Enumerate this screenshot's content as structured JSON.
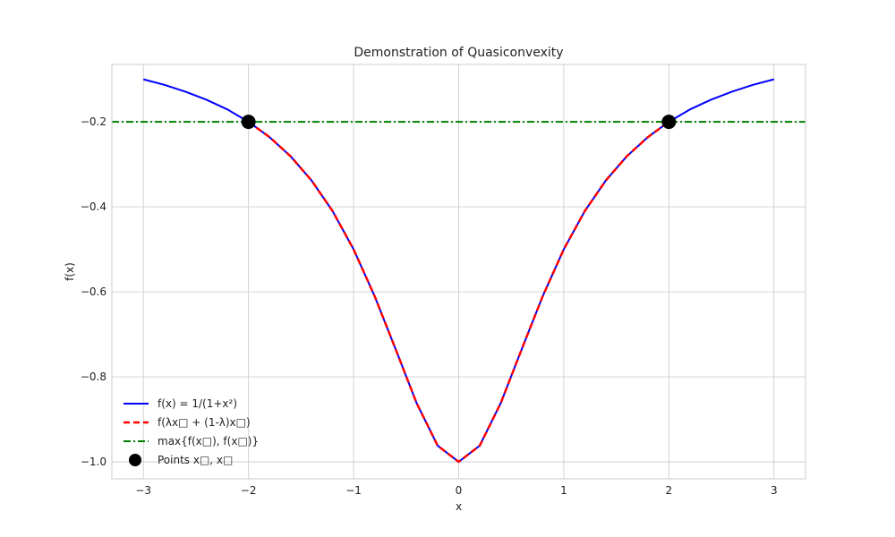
{
  "chart_data": {
    "type": "line",
    "title": "Demonstration of Quasiconvexity",
    "xlabel": "x",
    "ylabel": "f(x)",
    "xlim": [
      -3.3,
      3.3
    ],
    "ylim": [
      -1.04,
      -0.065
    ],
    "x_ticks": [
      -3,
      -2,
      -1,
      0,
      1,
      2,
      3
    ],
    "x_tick_labels": [
      "−3",
      "−2",
      "−1",
      "0",
      "1",
      "2",
      "3"
    ],
    "y_ticks": [
      -0.2,
      -0.4,
      -0.6,
      -0.8,
      -1.0
    ],
    "y_tick_labels": [
      "−0.2",
      "−0.4",
      "−0.6",
      "−0.8",
      "−1.0"
    ],
    "grid": true,
    "legend_position": "lower-left",
    "series": [
      {
        "name": "f(x) = 1/(1+x²)",
        "style": "solid",
        "color": "#0000ff",
        "x": [
          -3.0,
          -2.8,
          -2.6,
          -2.4,
          -2.2,
          -2.0,
          -1.8,
          -1.6,
          -1.4,
          -1.2,
          -1.0,
          -0.8,
          -0.6,
          -0.4,
          -0.2,
          0.0,
          0.2,
          0.4,
          0.6,
          0.8,
          1.0,
          1.2,
          1.4,
          1.6,
          1.8,
          2.0,
          2.2,
          2.4,
          2.6,
          2.8,
          3.0
        ],
        "y": [
          -0.1,
          -0.113,
          -0.129,
          -0.148,
          -0.171,
          -0.2,
          -0.236,
          -0.281,
          -0.338,
          -0.41,
          -0.5,
          -0.61,
          -0.735,
          -0.862,
          -0.962,
          -1.0,
          -0.962,
          -0.862,
          -0.735,
          -0.61,
          -0.5,
          -0.41,
          -0.338,
          -0.281,
          -0.236,
          -0.2,
          -0.171,
          -0.148,
          -0.129,
          -0.113,
          -0.1
        ]
      },
      {
        "name": "f(λx□ + (1-λ)x□)",
        "style": "dashed",
        "color": "#ff0000",
        "x": [
          -2.0,
          -1.8,
          -1.6,
          -1.4,
          -1.2,
          -1.0,
          -0.8,
          -0.6,
          -0.4,
          -0.2,
          0.0,
          0.2,
          0.4,
          0.6,
          0.8,
          1.0,
          1.2,
          1.4,
          1.6,
          1.8,
          2.0
        ],
        "y": [
          -0.2,
          -0.236,
          -0.281,
          -0.338,
          -0.41,
          -0.5,
          -0.61,
          -0.735,
          -0.862,
          -0.962,
          -1.0,
          -0.962,
          -0.862,
          -0.735,
          -0.61,
          -0.5,
          -0.41,
          -0.338,
          -0.281,
          -0.236,
          -0.2
        ]
      },
      {
        "name": "max{f(x□), f(x□)}",
        "style": "dashdot",
        "color": "#008000",
        "x": [
          -3.3,
          3.3
        ],
        "y": [
          -0.2,
          -0.2
        ]
      }
    ],
    "points": {
      "name": "Points x□, x□",
      "color": "#000000",
      "x": [
        -2,
        2
      ],
      "y": [
        -0.2,
        -0.2
      ]
    }
  }
}
